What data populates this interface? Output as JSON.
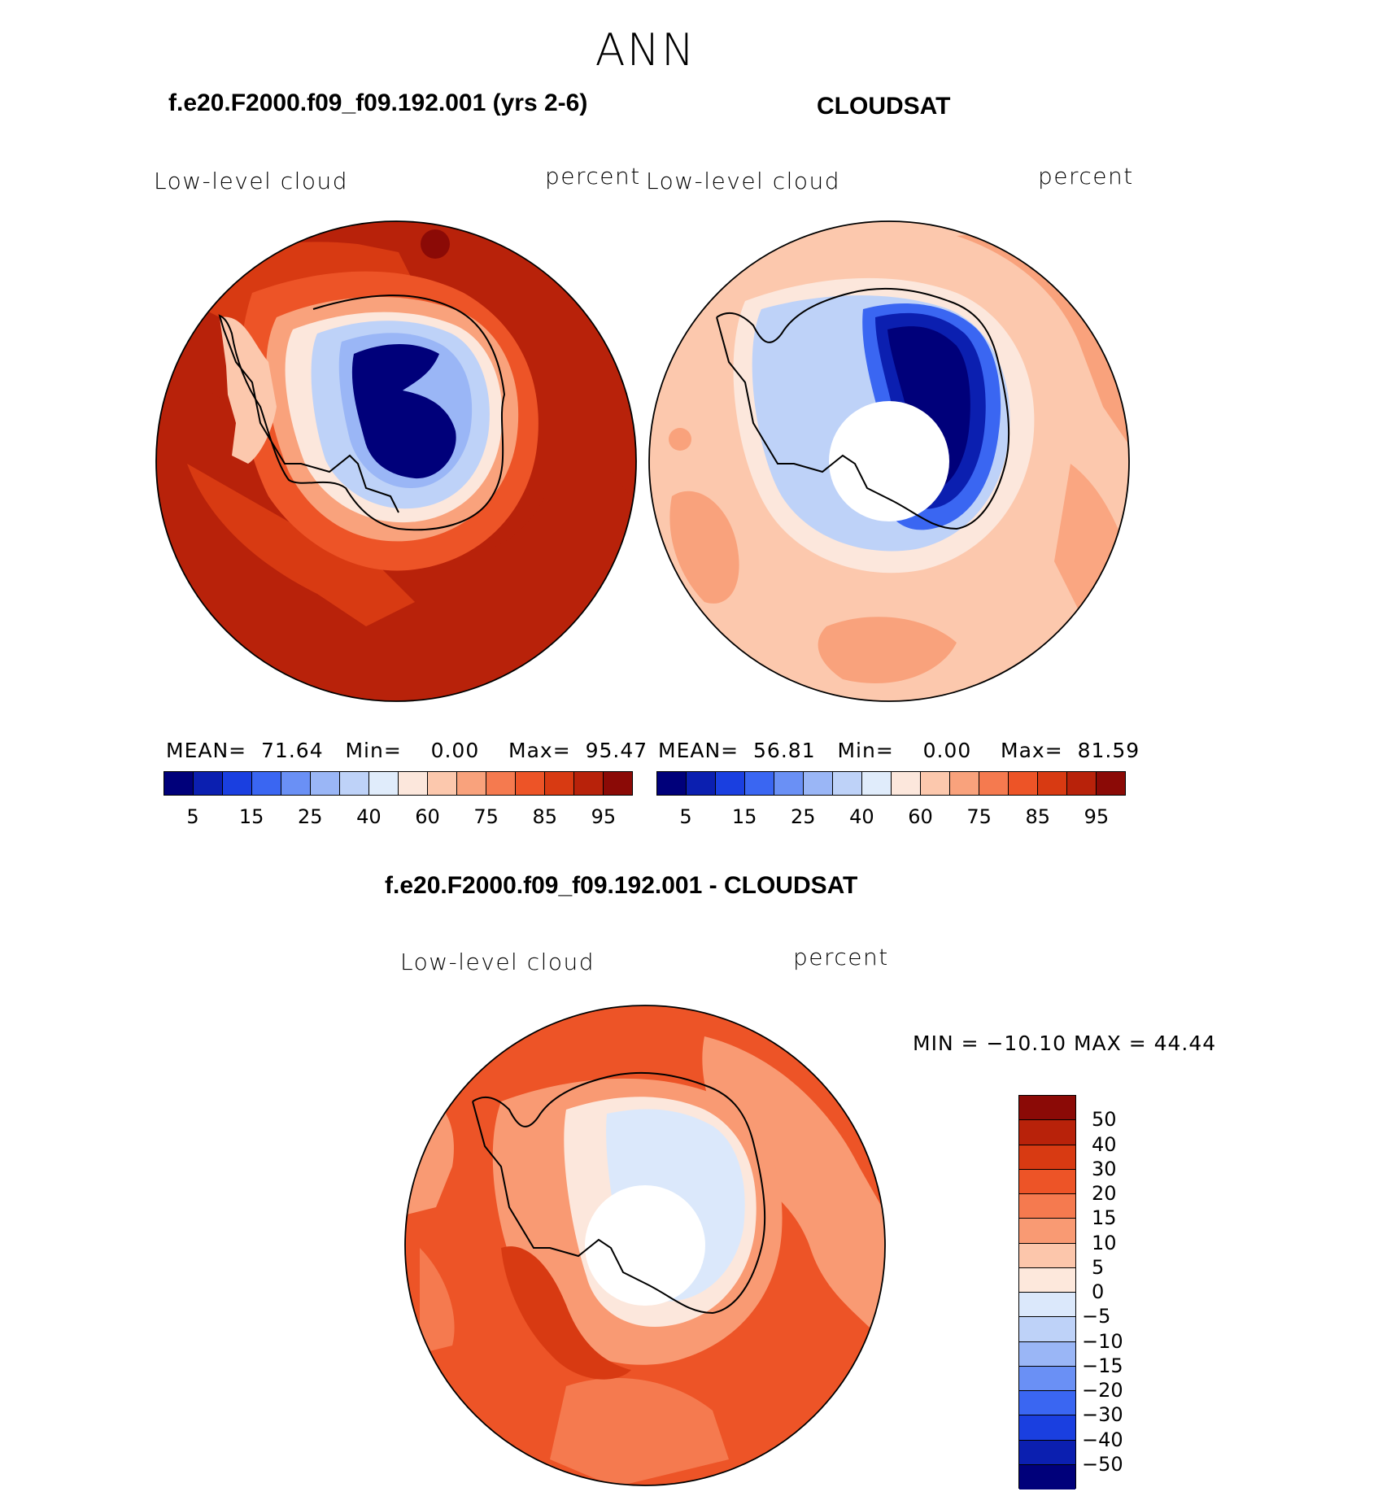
{
  "page": {
    "title": "ANN"
  },
  "panels": [
    {
      "title": "f.e20.F2000.f09_f09.192.001 (yrs 2-6)",
      "left_label": "Low-level cloud",
      "right_label": "percent",
      "stats": {
        "mean_label": "MEAN=",
        "mean": "71.64",
        "min_label": "Min=",
        "min": "0.00",
        "max_label": "Max=",
        "max": "95.47"
      }
    },
    {
      "title": "CLOUDSAT",
      "left_label": "Low-level cloud",
      "right_label": "percent",
      "stats": {
        "mean_label": "MEAN=",
        "mean": "56.81",
        "min_label": "Min=",
        "min": "0.00",
        "max_label": "Max=",
        "max": "81.59"
      }
    },
    {
      "title": "f.e20.F2000.f09_f09.192.001 - CLOUDSAT",
      "left_label": "Low-level cloud",
      "right_label": "percent",
      "minmax": "MIN = −10.10 MAX =   44.44"
    }
  ],
  "colorbar_abs": {
    "colors": [
      "#00007a",
      "#0b1fb0",
      "#1a3fe0",
      "#3a66f2",
      "#6a90f5",
      "#9ab6f6",
      "#bed2f8",
      "#e0ecfb",
      "#fce7dc",
      "#fcc8ad",
      "#f9a27c",
      "#f57a4f",
      "#ed5427",
      "#d83a12",
      "#b8220a",
      "#8b0a06"
    ],
    "tick_labels": [
      "5",
      "15",
      "25",
      "40",
      "60",
      "75",
      "85",
      "95"
    ]
  },
  "colorbar_diff": {
    "colors": [
      "#00007a",
      "#0b1fb0",
      "#1a3fe0",
      "#3a66f2",
      "#6a90f5",
      "#9ab6f6",
      "#bed2f8",
      "#dbe8fb",
      "#fde8dc",
      "#fcc6ab",
      "#f99a73",
      "#f57a4f",
      "#ed5427",
      "#d83a12",
      "#b8220a",
      "#8b0a06"
    ],
    "tick_labels": [
      "50",
      "40",
      "30",
      "20",
      "15",
      "10",
      "5",
      "0",
      "−5",
      "−10",
      "−15",
      "−20",
      "−30",
      "−40",
      "−50"
    ]
  }
}
